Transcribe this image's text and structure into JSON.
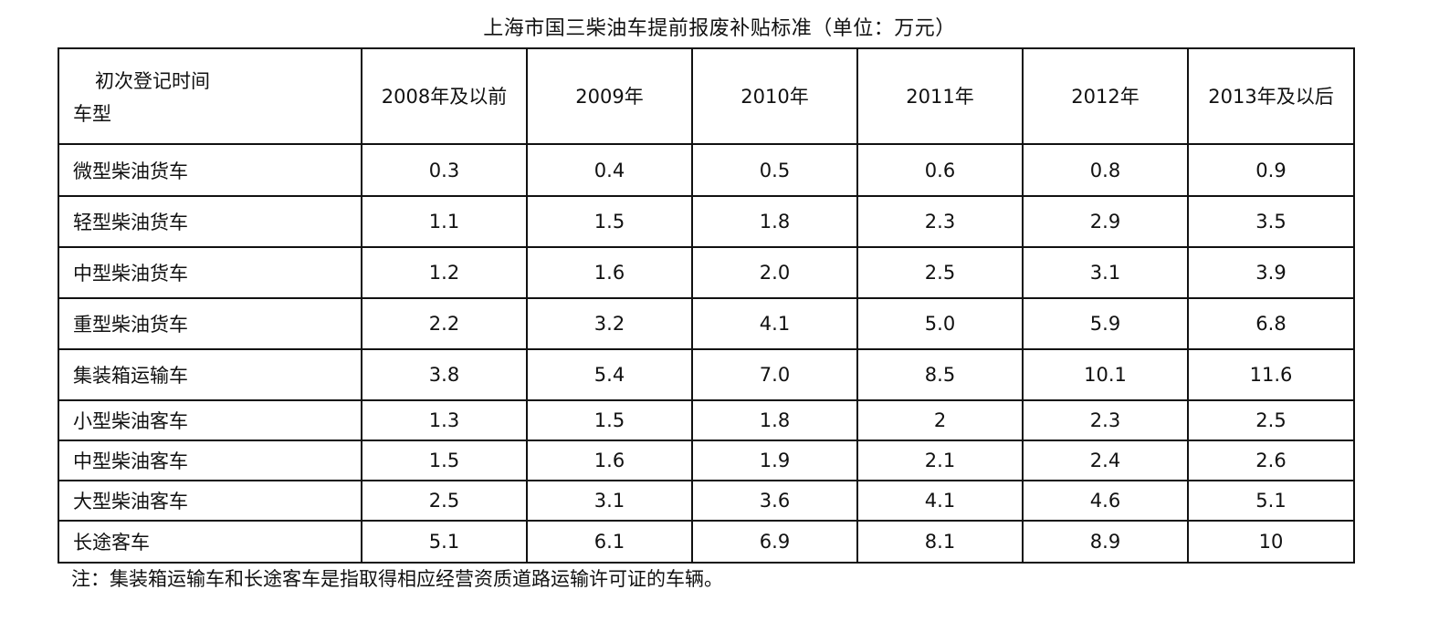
{
  "title": "上海市国三柴油车提前报废补贴标准（单位：万元）",
  "table": {
    "corner_top": "初次登记时间",
    "corner_bottom": "车型",
    "columns": [
      "2008年及以前",
      "2009年",
      "2010年",
      "2011年",
      "2012年",
      "2013年及以后"
    ],
    "rows": [
      {
        "label": "微型柴油货车",
        "values": [
          "0.3",
          "0.4",
          "0.5",
          "0.6",
          "0.8",
          "0.9"
        ]
      },
      {
        "label": "轻型柴油货车",
        "values": [
          "1.1",
          "1.5",
          "1.8",
          "2.3",
          "2.9",
          "3.5"
        ]
      },
      {
        "label": "中型柴油货车",
        "values": [
          "1.2",
          "1.6",
          "2.0",
          "2.5",
          "3.1",
          "3.9"
        ]
      },
      {
        "label": "重型柴油货车",
        "values": [
          "2.2",
          "3.2",
          "4.1",
          "5.0",
          "5.9",
          "6.8"
        ]
      },
      {
        "label": "集装箱运输车",
        "values": [
          "3.8",
          "5.4",
          "7.0",
          "8.5",
          "10.1",
          "11.6"
        ]
      },
      {
        "label": "小型柴油客车",
        "values": [
          "1.3",
          "1.5",
          "1.8",
          "2",
          "2.3",
          "2.5"
        ]
      },
      {
        "label": "中型柴油客车",
        "values": [
          "1.5",
          "1.6",
          "1.9",
          "2.1",
          "2.4",
          "2.6"
        ]
      },
      {
        "label": "大型柴油客车",
        "values": [
          "2.5",
          "3.1",
          "3.6",
          "4.1",
          "4.6",
          "5.1"
        ]
      },
      {
        "label": "长途客车",
        "values": [
          "5.1",
          "6.1",
          "6.9",
          "8.1",
          "8.9",
          "10"
        ]
      }
    ]
  },
  "footnote": "注：集装箱运输车和长途客车是指取得相应经营资质道路运输许可证的车辆。"
}
